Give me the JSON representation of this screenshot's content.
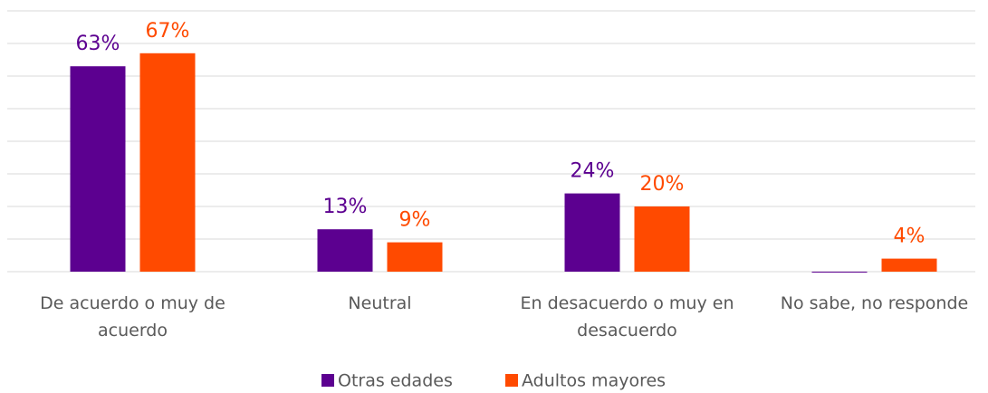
{
  "chart_data": {
    "type": "bar",
    "categories": [
      "De acuerdo o muy de acuerdo",
      "Neutral",
      "En desacuerdo o muy en desacuerdo",
      "No sabe, no responde"
    ],
    "series": [
      {
        "name": "Otras edades",
        "color": "#5c0090",
        "values": [
          63,
          13,
          24,
          0
        ],
        "value_labels": [
          "63%",
          "13%",
          "24%",
          null
        ]
      },
      {
        "name": "Adultos mayores",
        "color": "#ff4a00",
        "values": [
          67,
          9,
          20,
          4
        ],
        "value_labels": [
          "67%",
          "9%",
          "20%",
          "4%"
        ]
      }
    ],
    "ylim": [
      0,
      80
    ],
    "yticks": [
      0,
      10,
      20,
      30,
      40,
      50,
      60,
      70,
      80
    ],
    "grid": true,
    "legend": "bottom"
  }
}
